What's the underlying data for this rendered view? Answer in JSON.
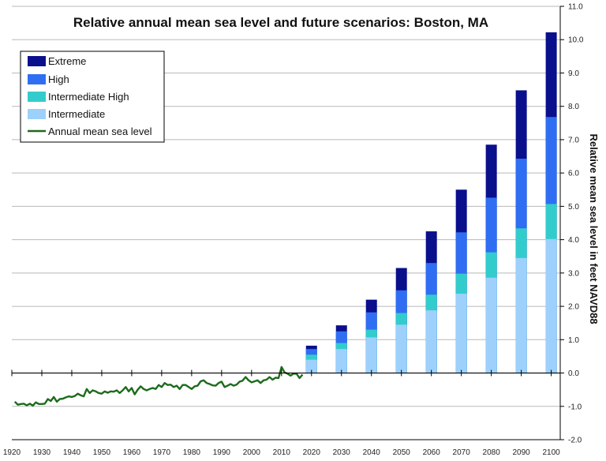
{
  "chart_data": {
    "type": "bar",
    "title": "Relative annual mean sea level and future scenarios: Boston, MA",
    "ylabel": "Relative mean sea level in feet NAVD88",
    "xlabel": "",
    "ylim": [
      -2.0,
      11.0
    ],
    "y_ticks": [
      "-2.0",
      "-1.0",
      "0.0",
      "1.0",
      "2.0",
      "3.0",
      "4.0",
      "5.0",
      "6.0",
      "7.0",
      "8.0",
      "9.0",
      "10.0",
      "11.0"
    ],
    "x_ticks": [
      "1920",
      "1930",
      "1940",
      "1950",
      "1960",
      "1970",
      "1980",
      "1990",
      "2000",
      "2010",
      "2020",
      "2030",
      "2040",
      "2050",
      "2060",
      "2070",
      "2080",
      "2090",
      "2100"
    ],
    "x_range": [
      1920,
      2103
    ],
    "grid": true,
    "legend_position": "top-left",
    "colors": {
      "extreme": "#0a0f8c",
      "high": "#2f6ef2",
      "intermediate_high": "#33cccc",
      "intermediate": "#9dd0fb",
      "annual": "#1c6b1c",
      "grid": "#b9b9b9",
      "axis": "#000000"
    },
    "legend": [
      {
        "key": "extreme",
        "label": "Extreme"
      },
      {
        "key": "high",
        "label": "High"
      },
      {
        "key": "intermediate_high",
        "label": "Intermediate High"
      },
      {
        "key": "intermediate",
        "label": "Intermediate"
      },
      {
        "key": "annual",
        "label": "Annual mean sea level"
      }
    ],
    "scenario_years": [
      2020,
      2030,
      2040,
      2050,
      2060,
      2070,
      2080,
      2090,
      2100
    ],
    "series": [
      {
        "name": "Intermediate",
        "key": "intermediate",
        "values": [
          0.4,
          0.72,
          1.07,
          1.45,
          1.88,
          2.38,
          2.86,
          3.45,
          4.02
        ]
      },
      {
        "name": "Intermediate High",
        "key": "intermediate_high",
        "values": [
          0.55,
          0.9,
          1.3,
          1.8,
          2.35,
          2.98,
          3.62,
          4.34,
          5.07
        ]
      },
      {
        "name": "High",
        "key": "high",
        "values": [
          0.72,
          1.25,
          1.82,
          2.48,
          3.3,
          4.22,
          5.26,
          6.43,
          7.68
        ]
      },
      {
        "name": "Extreme",
        "key": "extreme",
        "values": [
          0.82,
          1.43,
          2.2,
          3.15,
          4.25,
          5.5,
          6.85,
          8.48,
          10.22
        ]
      }
    ],
    "annual_mean_sea_level": {
      "name": "Annual mean sea level",
      "x": [
        1921,
        1922,
        1923,
        1924,
        1925,
        1926,
        1927,
        1928,
        1929,
        1930,
        1931,
        1932,
        1933,
        1934,
        1935,
        1936,
        1937,
        1938,
        1939,
        1940,
        1941,
        1942,
        1943,
        1944,
        1945,
        1946,
        1947,
        1948,
        1949,
        1950,
        1951,
        1952,
        1953,
        1954,
        1955,
        1956,
        1957,
        1958,
        1959,
        1960,
        1961,
        1962,
        1963,
        1964,
        1965,
        1966,
        1967,
        1968,
        1969,
        1970,
        1971,
        1972,
        1973,
        1974,
        1975,
        1976,
        1977,
        1978,
        1979,
        1980,
        1981,
        1982,
        1983,
        1984,
        1985,
        1986,
        1987,
        1988,
        1989,
        1990,
        1991,
        1992,
        1993,
        1994,
        1995,
        1996,
        1997,
        1998,
        1999,
        2000,
        2001,
        2002,
        2003,
        2004,
        2005,
        2006,
        2007,
        2008,
        2009,
        2010,
        2011,
        2012,
        2013,
        2014,
        2015,
        2016,
        2017
      ],
      "y": [
        -0.86,
        -0.95,
        -0.93,
        -0.92,
        -0.97,
        -0.92,
        -0.98,
        -0.88,
        -0.93,
        -0.93,
        -0.92,
        -0.78,
        -0.84,
        -0.72,
        -0.86,
        -0.78,
        -0.77,
        -0.73,
        -0.7,
        -0.72,
        -0.69,
        -0.62,
        -0.67,
        -0.7,
        -0.48,
        -0.6,
        -0.52,
        -0.55,
        -0.6,
        -0.62,
        -0.55,
        -0.59,
        -0.55,
        -0.56,
        -0.52,
        -0.6,
        -0.52,
        -0.42,
        -0.55,
        -0.45,
        -0.64,
        -0.5,
        -0.4,
        -0.48,
        -0.52,
        -0.48,
        -0.45,
        -0.48,
        -0.36,
        -0.42,
        -0.3,
        -0.36,
        -0.35,
        -0.42,
        -0.38,
        -0.48,
        -0.36,
        -0.36,
        -0.42,
        -0.48,
        -0.4,
        -0.38,
        -0.25,
        -0.22,
        -0.3,
        -0.33,
        -0.37,
        -0.38,
        -0.3,
        -0.26,
        -0.42,
        -0.38,
        -0.33,
        -0.38,
        -0.35,
        -0.26,
        -0.23,
        -0.12,
        -0.22,
        -0.28,
        -0.25,
        -0.22,
        -0.3,
        -0.22,
        -0.2,
        -0.12,
        -0.2,
        -0.14,
        -0.15,
        0.18,
        0.02,
        -0.02,
        -0.08,
        -0.02,
        -0.02,
        -0.15,
        -0.05
      ]
    }
  }
}
